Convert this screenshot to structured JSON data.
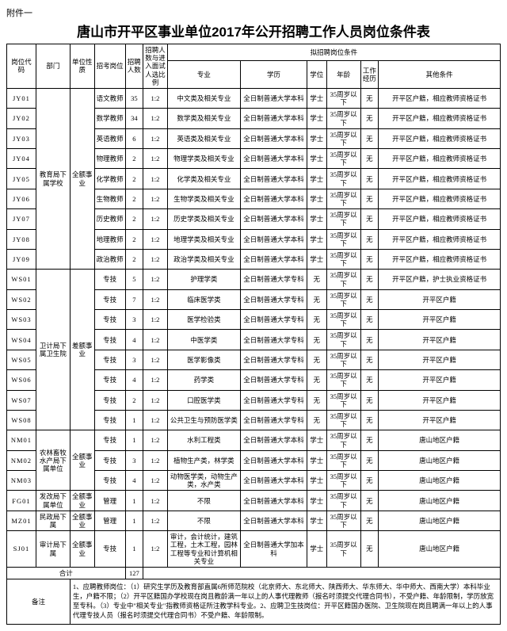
{
  "attachment": "附件一",
  "title": "唐山市开平区事业单位2017年公开招聘工作人员岗位条件表",
  "header": {
    "group": "拟招聘岗位条件",
    "cols": [
      "岗位代码",
      "部门",
      "单位性质",
      "招考岗位",
      "招聘人数",
      "招聘人数与进入面试人选比例",
      "专业",
      "学历",
      "学位",
      "年龄",
      "工作经历",
      "其他条件"
    ]
  },
  "sections": [
    {
      "dept": "教育局下属学校",
      "nature": "全额事业",
      "rows": [
        {
          "code": "JY01",
          "post": "语文教师",
          "num": "35",
          "ratio": "1:2",
          "major": "中文类及相关专业",
          "edu": "全日制普通大学本科",
          "deg": "学士",
          "age": "35周岁以下",
          "exp": "无",
          "other": "开平区户籍，相应教师资格证书"
        },
        {
          "code": "JY02",
          "post": "数学教师",
          "num": "34",
          "ratio": "1:2",
          "major": "数学类及相关专业",
          "edu": "全日制普通大学本科",
          "deg": "学士",
          "age": "35周岁以下",
          "exp": "无",
          "other": "开平区户籍，相应教师资格证书"
        },
        {
          "code": "JY03",
          "post": "英语教师",
          "num": "6",
          "ratio": "1:2",
          "major": "英语类及相关专业",
          "edu": "全日制普通大学本科",
          "deg": "学士",
          "age": "35周岁以下",
          "exp": "无",
          "other": "开平区户籍，相应教师资格证书"
        },
        {
          "code": "JY04",
          "post": "物理教师",
          "num": "2",
          "ratio": "1:2",
          "major": "物理学类及相关专业",
          "edu": "全日制普通大学本科",
          "deg": "学士",
          "age": "35周岁以下",
          "exp": "无",
          "other": "开平区户籍，相应教师资格证书"
        },
        {
          "code": "JY05",
          "post": "化学教师",
          "num": "2",
          "ratio": "1:2",
          "major": "化学类及相关专业",
          "edu": "全日制普通大学本科",
          "deg": "学士",
          "age": "35周岁以下",
          "exp": "无",
          "other": "开平区户籍，相应教师资格证书"
        },
        {
          "code": "JY06",
          "post": "生物教师",
          "num": "2",
          "ratio": "1:2",
          "major": "生物学类及相关专业",
          "edu": "全日制普通大学本科",
          "deg": "学士",
          "age": "35周岁以下",
          "exp": "无",
          "other": "开平区户籍，相应教师资格证书"
        },
        {
          "code": "JY07",
          "post": "历史教师",
          "num": "2",
          "ratio": "1:2",
          "major": "历史学类及相关专业",
          "edu": "全日制普通大学本科",
          "deg": "学士",
          "age": "35周岁以下",
          "exp": "无",
          "other": "开平区户籍，相应教师资格证书"
        },
        {
          "code": "JY08",
          "post": "地理教师",
          "num": "2",
          "ratio": "1:2",
          "major": "地理学类及相关专业",
          "edu": "全日制普通大学本科",
          "deg": "学士",
          "age": "35周岁以下",
          "exp": "无",
          "other": "开平区户籍，相应教师资格证书"
        },
        {
          "code": "JY09",
          "post": "政治教师",
          "num": "2",
          "ratio": "1:2",
          "major": "政治学类及相关专业",
          "edu": "全日制普通大学本科",
          "deg": "学士",
          "age": "35周岁以下",
          "exp": "无",
          "other": "开平区户籍，相应教师资格证书"
        }
      ]
    },
    {
      "dept": "卫计局下属卫生院",
      "nature": "差额事业",
      "rows": [
        {
          "code": "WS01",
          "post": "专技",
          "num": "5",
          "ratio": "1:2",
          "major": "护理学类",
          "edu": "全日制普通大学专科",
          "deg": "无",
          "age": "35周岁以下",
          "exp": "无",
          "other": "开平区户籍，护士执业资格证书"
        },
        {
          "code": "WS02",
          "post": "专技",
          "num": "7",
          "ratio": "1:2",
          "major": "临床医学类",
          "edu": "全日制普通大学专科",
          "deg": "无",
          "age": "35周岁以下",
          "exp": "无",
          "other": "开平区户籍"
        },
        {
          "code": "WS03",
          "post": "专技",
          "num": "3",
          "ratio": "1:2",
          "major": "医学检验类",
          "edu": "全日制普通大学专科",
          "deg": "无",
          "age": "35周岁以下",
          "exp": "无",
          "other": "开平区户籍"
        },
        {
          "code": "WS04",
          "post": "专技",
          "num": "4",
          "ratio": "1:2",
          "major": "中医学类",
          "edu": "全日制普通大学专科",
          "deg": "无",
          "age": "35周岁以下",
          "exp": "无",
          "other": "开平区户籍"
        },
        {
          "code": "WS05",
          "post": "专技",
          "num": "3",
          "ratio": "1:2",
          "major": "医学影像类",
          "edu": "全日制普通大学专科",
          "deg": "无",
          "age": "35周岁以下",
          "exp": "无",
          "other": "开平区户籍"
        },
        {
          "code": "WS06",
          "post": "专技",
          "num": "4",
          "ratio": "1:2",
          "major": "药学类",
          "edu": "全日制普通大学专科",
          "deg": "无",
          "age": "35周岁以下",
          "exp": "无",
          "other": "开平区户籍"
        },
        {
          "code": "WS07",
          "post": "专技",
          "num": "2",
          "ratio": "1:2",
          "major": "口腔医学类",
          "edu": "全日制普通大学专科",
          "deg": "无",
          "age": "35周岁以下",
          "exp": "无",
          "other": "开平区户籍"
        },
        {
          "code": "WS08",
          "post": "专技",
          "num": "1",
          "ratio": "1:2",
          "major": "公共卫生与预防医学类",
          "edu": "全日制普通大学专科",
          "deg": "无",
          "age": "35周岁以下",
          "exp": "无",
          "other": "开平区户籍"
        }
      ]
    },
    {
      "dept": "农林畜牧水产局下属单位",
      "nature": "全额事业",
      "rows": [
        {
          "code": "NM01",
          "post": "专技",
          "num": "1",
          "ratio": "1:2",
          "major": "水利工程类",
          "edu": "全日制普通大学本科",
          "deg": "学士",
          "age": "35周岁以下",
          "exp": "无",
          "other": "唐山地区户籍"
        },
        {
          "code": "NM02",
          "post": "专技",
          "num": "3",
          "ratio": "1:2",
          "major": "植物生产类，林学类",
          "edu": "全日制普通大学本科",
          "deg": "学士",
          "age": "35周岁以下",
          "exp": "无",
          "other": "唐山地区户籍"
        },
        {
          "code": "NM03",
          "post": "专技",
          "num": "4",
          "ratio": "1:2",
          "major": "动物医学类，动物生产类，水产类",
          "edu": "全日制普通大学本科",
          "deg": "学士",
          "age": "35周岁以下",
          "exp": "无",
          "other": "唐山地区户籍"
        }
      ]
    },
    {
      "dept": "发改局下属单位",
      "nature": "全额事业",
      "rows": [
        {
          "code": "FG01",
          "post": "管理",
          "num": "1",
          "ratio": "1:2",
          "major": "不限",
          "edu": "全日制普通大学本科",
          "deg": "学士",
          "age": "35周岁以下",
          "exp": "无",
          "other": "唐山地区户籍"
        }
      ]
    },
    {
      "dept": "民政局下属",
      "nature": "全额事业",
      "rows": [
        {
          "code": "MZ01",
          "post": "管理",
          "num": "1",
          "ratio": "1:2",
          "major": "不限",
          "edu": "全日制普通大学本科",
          "deg": "学士",
          "age": "35周岁以下",
          "exp": "无",
          "other": "唐山地区户籍"
        }
      ]
    },
    {
      "dept": "审计局下属",
      "nature": "全额事业",
      "rows": [
        {
          "code": "SJ01",
          "post": "专技",
          "num": "1",
          "ratio": "1:2",
          "major": "审计，会计统计，建筑工程，土木工程，园林工程等专业和计算机相关专业",
          "edu": "全日制普通大学加本科",
          "deg": "学士",
          "age": "35周岁以下",
          "exp": "无",
          "other": "唐山地区户籍"
        }
      ]
    }
  ],
  "total": {
    "label": "合计",
    "num": "127"
  },
  "note": {
    "label": "备注",
    "text": "1、应聘教师岗位：（1）研究生学历及教育部直属6所师范院校（北京师大、东北师大、陕西师大、华东师大、华中师大、西南大学）本科毕业生，户籍不限；（2）开平区籍国办学校现在岗且教龄满一年以上的人事代理教师（报名时须提交代理合同书），不受户籍、年龄限制，学历放宽至专科。（3）专业中\"相关专业\"指教师资格证所注教学科专业。2、应聘卫生技岗位：开平区籍国办医院、卫生院现在岗且聘满一年以上的人事代理专技人员（报名时须提交代理合同书）不受户籍、年龄限制。"
  },
  "widths": {
    "code": 36,
    "dept": 42,
    "nature": 30,
    "post": 38,
    "num": 22,
    "ratio": 30,
    "major": 90,
    "edu": 82,
    "deg": 24,
    "age": 42,
    "exp": 22,
    "other": 150
  }
}
